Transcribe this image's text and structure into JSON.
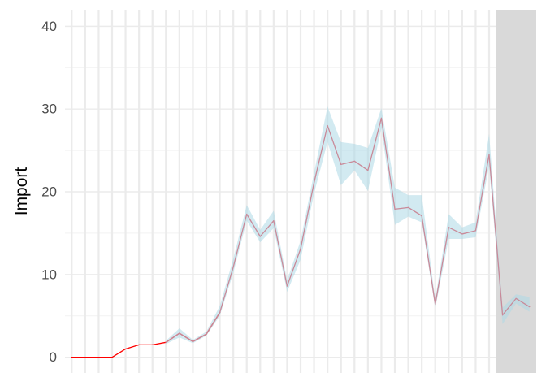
{
  "chart_data": {
    "type": "line",
    "title": "",
    "xlabel": "",
    "ylabel": "Import",
    "ylim": [
      -1.9,
      42
    ],
    "y_ticks": [
      0,
      10,
      20,
      30,
      40
    ],
    "y_tick_labels": [
      "0",
      "10",
      "20",
      "30",
      "40"
    ],
    "x_ticks_shown": false,
    "grid": true,
    "legend": "none",
    "x": [
      1,
      2,
      3,
      4,
      5,
      6,
      7,
      8,
      9,
      10,
      11,
      12,
      13,
      14,
      15,
      16,
      17,
      18,
      19,
      20,
      21,
      22,
      23,
      24,
      25,
      26,
      27,
      28,
      29,
      30,
      31,
      32,
      33,
      34,
      35
    ],
    "series": [
      {
        "role": "actual",
        "color": "#ff0000",
        "values": [
          0,
          0,
          0,
          0,
          1.0,
          1.5,
          1.5,
          1.8,
          2.9,
          1.9,
          2.8,
          5.4,
          null,
          null,
          null,
          null,
          null,
          null,
          null,
          null,
          null,
          null,
          null,
          null,
          null,
          null,
          null,
          null,
          null,
          null,
          null,
          null,
          null,
          null,
          null
        ]
      },
      {
        "role": "predicted",
        "color": "#c98a99",
        "values": [
          null,
          null,
          null,
          null,
          null,
          null,
          null,
          1.8,
          2.9,
          1.9,
          2.8,
          5.4,
          10.9,
          17.3,
          14.6,
          16.5,
          8.6,
          13.1,
          21.1,
          28.0,
          23.3,
          23.7,
          22.6,
          28.9,
          17.9,
          18.1,
          17.1,
          6.4,
          15.7,
          14.9,
          15.3,
          24.5,
          5.1,
          7.1,
          6.1
        ]
      }
    ],
    "band": {
      "color": "#add8e6",
      "lower": [
        null,
        null,
        null,
        null,
        null,
        null,
        null,
        1.6,
        2.4,
        1.7,
        2.6,
        5.0,
        10.2,
        16.5,
        13.9,
        15.6,
        7.9,
        11.8,
        19.8,
        26.0,
        20.8,
        22.6,
        20.1,
        27.7,
        16.0,
        17.0,
        16.3,
        5.9,
        14.3,
        14.3,
        14.5,
        23.1,
        4.0,
        6.5,
        5.5
      ],
      "upper": [
        null,
        null,
        null,
        null,
        null,
        null,
        null,
        2.0,
        3.5,
        2.1,
        3.1,
        6.2,
        11.9,
        18.4,
        15.4,
        17.7,
        9.3,
        14.1,
        22.3,
        30.3,
        26.0,
        25.8,
        25.3,
        30.1,
        20.5,
        19.6,
        19.6,
        7.0,
        17.3,
        15.7,
        16.3,
        27.0,
        6.0,
        7.6,
        7.3
      ]
    },
    "shaded_region": {
      "from_x": 32.5,
      "to_x": 35.5,
      "color": "#d9d9d9"
    }
  }
}
